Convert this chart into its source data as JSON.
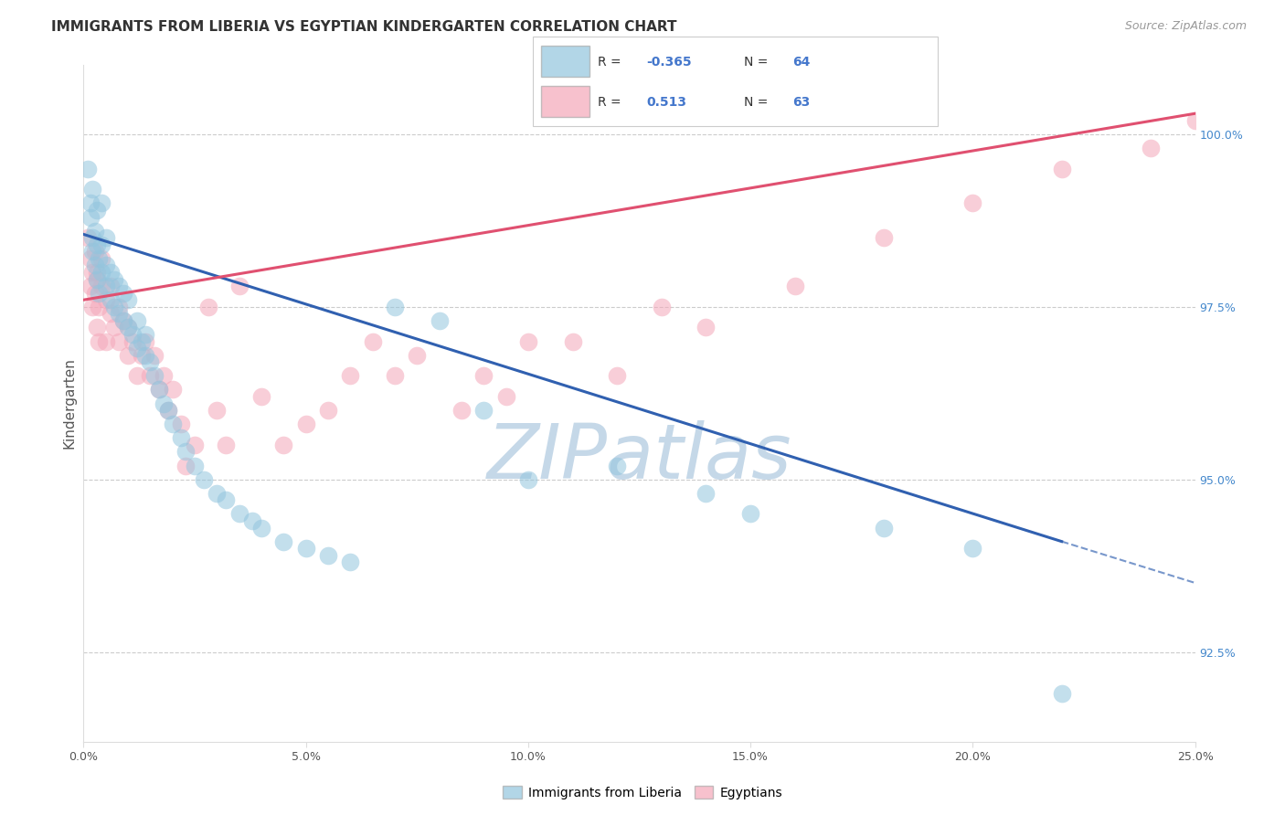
{
  "title": "IMMIGRANTS FROM LIBERIA VS EGYPTIAN KINDERGARTEN CORRELATION CHART",
  "source": "Source: ZipAtlas.com",
  "ylabel": "Kindergarten",
  "right_yticks": [
    92.5,
    95.0,
    97.5,
    100.0
  ],
  "right_ytick_labels": [
    "92.5%",
    "95.0%",
    "97.5%",
    "100.0%"
  ],
  "xmin": 0.0,
  "xmax": 25.0,
  "ymin": 91.2,
  "ymax": 101.0,
  "blue_R": -0.365,
  "blue_N": 64,
  "pink_R": 0.513,
  "pink_N": 63,
  "blue_color": "#92c5de",
  "pink_color": "#f4a7b9",
  "blue_line_color": "#3060b0",
  "pink_line_color": "#e05070",
  "watermark": "ZIPatlas",
  "watermark_color": "#c5d8e8",
  "legend_label_blue": "Immigrants from Liberia",
  "legend_label_pink": "Egyptians",
  "blue_line_x0": 0.0,
  "blue_line_y0": 98.55,
  "blue_line_x1": 22.0,
  "blue_line_y1": 94.1,
  "blue_dash_x0": 22.0,
  "blue_dash_y0": 94.1,
  "blue_dash_x1": 25.0,
  "blue_dash_y1": 93.5,
  "pink_line_x0": 0.0,
  "pink_line_y0": 97.6,
  "pink_line_x1": 25.0,
  "pink_line_y1": 100.3,
  "blue_points_x": [
    0.1,
    0.15,
    0.15,
    0.2,
    0.2,
    0.2,
    0.25,
    0.25,
    0.3,
    0.3,
    0.3,
    0.35,
    0.35,
    0.4,
    0.4,
    0.4,
    0.5,
    0.5,
    0.5,
    0.6,
    0.6,
    0.7,
    0.7,
    0.8,
    0.8,
    0.9,
    0.9,
    1.0,
    1.0,
    1.1,
    1.2,
    1.2,
    1.3,
    1.4,
    1.4,
    1.5,
    1.6,
    1.7,
    1.8,
    1.9,
    2.0,
    2.2,
    2.3,
    2.5,
    2.7,
    3.0,
    3.2,
    3.5,
    3.8,
    4.0,
    4.5,
    5.0,
    5.5,
    6.0,
    7.0,
    8.0,
    9.0,
    10.0,
    12.0,
    14.0,
    15.0,
    18.0,
    20.0,
    22.0
  ],
  "blue_points_y": [
    99.5,
    98.8,
    99.0,
    98.3,
    98.5,
    99.2,
    98.1,
    98.6,
    97.9,
    98.4,
    98.9,
    97.7,
    98.2,
    98.0,
    98.4,
    99.0,
    97.8,
    98.1,
    98.5,
    97.6,
    98.0,
    97.5,
    97.9,
    97.4,
    97.8,
    97.3,
    97.7,
    97.2,
    97.6,
    97.1,
    96.9,
    97.3,
    97.0,
    96.8,
    97.1,
    96.7,
    96.5,
    96.3,
    96.1,
    96.0,
    95.8,
    95.6,
    95.4,
    95.2,
    95.0,
    94.8,
    94.7,
    94.5,
    94.4,
    94.3,
    94.1,
    94.0,
    93.9,
    93.8,
    97.5,
    97.3,
    96.0,
    95.0,
    95.2,
    94.8,
    94.5,
    94.3,
    94.0,
    91.9
  ],
  "pink_points_x": [
    0.1,
    0.15,
    0.15,
    0.2,
    0.2,
    0.25,
    0.25,
    0.3,
    0.3,
    0.3,
    0.35,
    0.35,
    0.4,
    0.4,
    0.5,
    0.5,
    0.6,
    0.6,
    0.7,
    0.8,
    0.8,
    0.9,
    1.0,
    1.0,
    1.1,
    1.2,
    1.3,
    1.4,
    1.5,
    1.6,
    1.7,
    1.8,
    1.9,
    2.0,
    2.2,
    2.5,
    2.8,
    3.0,
    3.5,
    4.0,
    4.5,
    5.0,
    5.5,
    6.5,
    7.0,
    8.5,
    9.5,
    10.0,
    12.0,
    14.0,
    16.0,
    18.0,
    20.0,
    22.0,
    24.0,
    25.0,
    3.2,
    2.3,
    7.5,
    6.0,
    9.0,
    11.0,
    13.0
  ],
  "pink_points_y": [
    98.5,
    97.8,
    98.2,
    98.0,
    97.5,
    98.3,
    97.7,
    97.9,
    97.2,
    98.0,
    97.5,
    97.0,
    97.8,
    98.2,
    97.6,
    97.0,
    97.4,
    97.8,
    97.2,
    97.0,
    97.5,
    97.3,
    96.8,
    97.2,
    97.0,
    96.5,
    96.8,
    97.0,
    96.5,
    96.8,
    96.3,
    96.5,
    96.0,
    96.3,
    95.8,
    95.5,
    97.5,
    96.0,
    97.8,
    96.2,
    95.5,
    95.8,
    96.0,
    97.0,
    96.5,
    96.0,
    96.2,
    97.0,
    96.5,
    97.2,
    97.8,
    98.5,
    99.0,
    99.5,
    99.8,
    100.2,
    95.5,
    95.2,
    96.8,
    96.5,
    96.5,
    97.0,
    97.5
  ]
}
